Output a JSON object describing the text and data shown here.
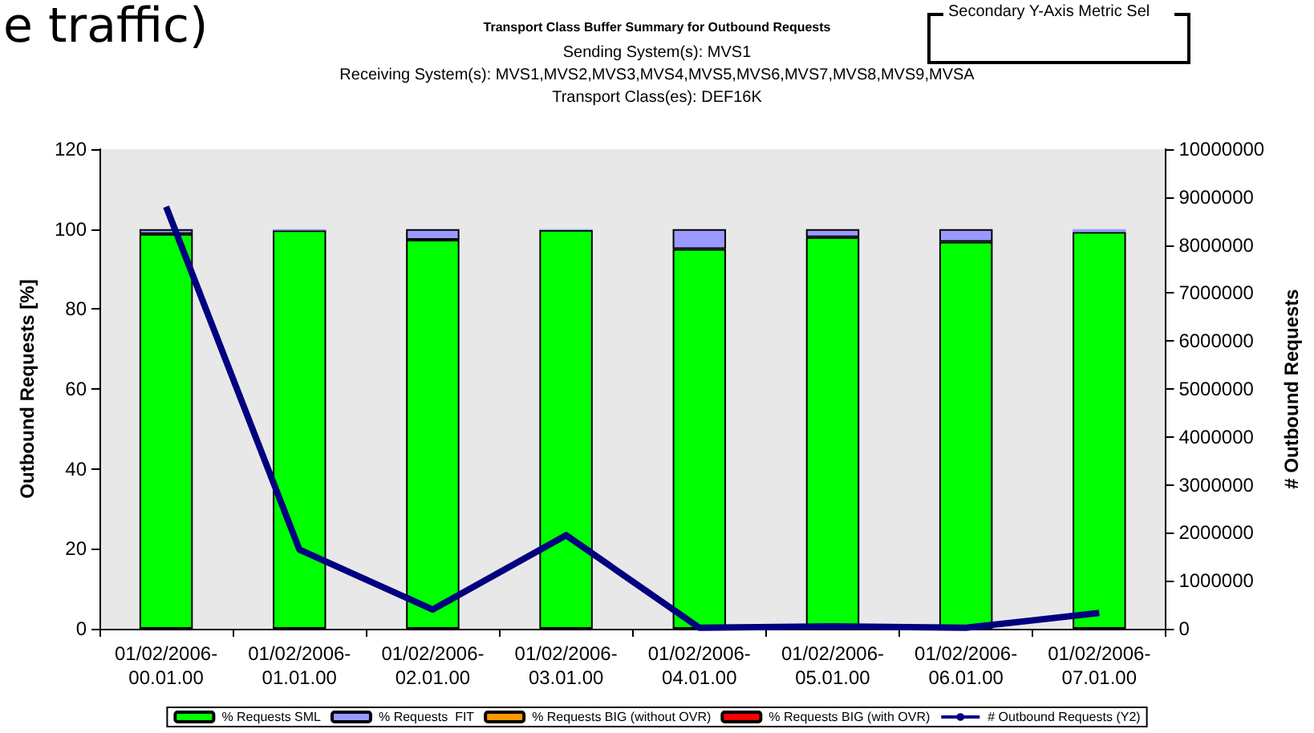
{
  "chart_data": {
    "type": "bar",
    "title": "Transport Class Buffer Summary for Outbound Requests",
    "subtitle": "Sending System(s): MVS1\nReceiving System(s): MVS1,MVS2,MVS3,MVS4,MVS5,MVS6,MVS7,MVS8,MVS9,MVSA\nTransport Class(es): DEF16K",
    "annotations": [
      "e traffic)",
      "Secondary Y-Axis Metric Sel"
    ],
    "categories": [
      "01/02/2006-00.01.00",
      "01/02/2006-01.01.00",
      "01/02/2006-02.01.00",
      "01/02/2006-03.01.00",
      "01/02/2006-04.01.00",
      "01/02/2006-05.01.00",
      "01/02/2006-06.01.00",
      "01/02/2006-07.01.00"
    ],
    "stacked": true,
    "series": [
      {
        "name": "% Requests SML",
        "color": "#00ff00",
        "values": [
          98.8,
          99.7,
          97.3,
          99.8,
          95,
          98,
          96.8,
          99.3
        ]
      },
      {
        "name": "% Requests  FIT",
        "color": "#9999ff",
        "values": [
          1.2,
          0.3,
          2.7,
          0.2,
          5,
          2,
          3.2,
          0.7
        ]
      },
      {
        "name": "% Requests BIG (without OVR)",
        "color": "#ff9900",
        "values": [
          0,
          0,
          0,
          0,
          0,
          0,
          0,
          0
        ]
      },
      {
        "name": "% Requests BIG (with OVR)",
        "color": "#ff0000",
        "values": [
          0,
          0,
          0,
          0,
          0,
          0,
          0,
          0
        ]
      },
      {
        "name": "# Outbound Requests (Y2)",
        "type": "line",
        "axis": "y2",
        "color": "#000080",
        "values": [
          8800000,
          1650000,
          400000,
          1950000,
          20000,
          50000,
          20000,
          330000
        ]
      }
    ],
    "ylabel": "Outbound Requests [%]",
    "y2label": "# Outbound Requests",
    "ylim": [
      0,
      120
    ],
    "yticks": [
      0,
      20,
      40,
      60,
      80,
      100,
      120
    ],
    "y2lim": [
      0,
      10000000
    ],
    "y2ticks": [
      0,
      1000000,
      2000000,
      3000000,
      4000000,
      5000000,
      6000000,
      7000000,
      8000000,
      9000000,
      10000000
    ],
    "grid": false,
    "legend": "bottom",
    "marker": "none"
  }
}
